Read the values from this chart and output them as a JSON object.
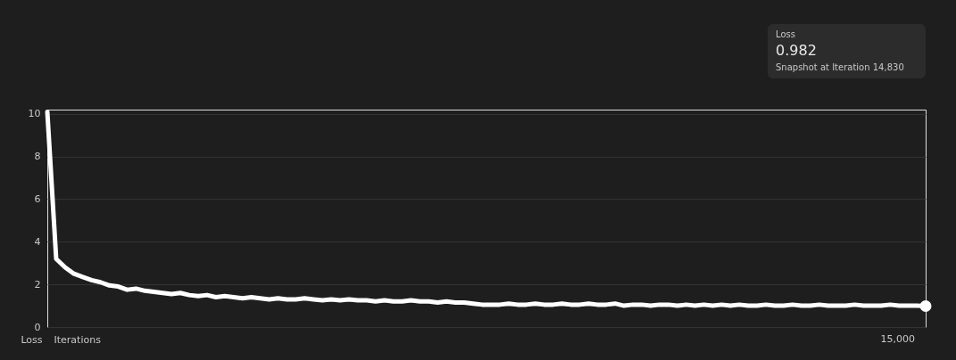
{
  "chart_data": {
    "type": "line",
    "xlabel": "Iterations",
    "ylabel": "Loss",
    "categories": [
      null,
      null,
      null,
      null,
      null,
      null,
      null,
      null,
      null,
      null,
      null,
      null,
      null,
      null,
      null,
      null,
      null,
      null,
      null,
      null,
      null,
      null,
      null,
      null,
      null,
      null,
      null,
      null,
      null,
      null,
      null,
      null,
      null,
      null,
      null,
      null,
      null,
      null,
      null,
      null,
      null,
      null,
      null,
      null,
      null,
      null,
      null,
      null,
      null,
      null,
      null,
      null,
      null,
      null,
      null,
      null,
      null,
      null,
      null,
      null,
      null,
      null,
      null,
      null,
      null,
      null,
      null,
      null,
      null,
      null,
      null,
      null,
      null,
      null,
      null,
      null,
      null,
      null,
      null,
      null,
      null,
      null,
      null,
      null,
      null,
      null,
      null,
      null,
      null,
      null,
      null,
      null,
      null,
      null,
      null,
      null,
      null,
      null,
      null,
      null
    ],
    "series": [
      {
        "color": "#ffffff",
        "values": [
          10.1,
          3.2,
          2.8,
          2.5,
          2.35,
          2.2,
          2.1,
          1.95,
          1.9,
          1.75,
          1.8,
          1.7,
          1.65,
          1.6,
          1.55,
          1.6,
          1.5,
          1.45,
          1.5,
          1.4,
          1.45,
          1.4,
          1.35,
          1.4,
          1.35,
          1.3,
          1.35,
          1.3,
          1.3,
          1.35,
          1.3,
          1.25,
          1.3,
          1.25,
          1.3,
          1.25,
          1.25,
          1.2,
          1.25,
          1.2,
          1.2,
          1.25,
          1.2,
          1.2,
          1.15,
          1.2,
          1.15,
          1.15,
          1.1,
          1.05,
          1.05,
          1.05,
          1.1,
          1.05,
          1.05,
          1.1,
          1.05,
          1.05,
          1.1,
          1.05,
          1.05,
          1.1,
          1.05,
          1.05,
          1.1,
          1.0,
          1.05,
          1.05,
          1.0,
          1.05,
          1.05,
          1.0,
          1.05,
          1.0,
          1.05,
          1.0,
          1.05,
          1.0,
          1.05,
          1.0,
          1.0,
          1.05,
          1.0,
          1.0,
          1.05,
          1.0,
          1.0,
          1.05,
          1.0,
          1.0,
          1.0,
          1.05,
          1.0,
          1.0,
          1.0,
          1.05,
          1.0,
          1.0,
          1.0,
          0.982
        ]
      }
    ],
    "ylim": [
      0,
      10.2
    ],
    "yticks": [
      0,
      2,
      4,
      6,
      8,
      10
    ],
    "grid": "y",
    "line_style": "solid",
    "annotations": [
      "Loss",
      "0.982",
      "Snapshot at Iteration 14,830",
      "15,000"
    ]
  }
}
